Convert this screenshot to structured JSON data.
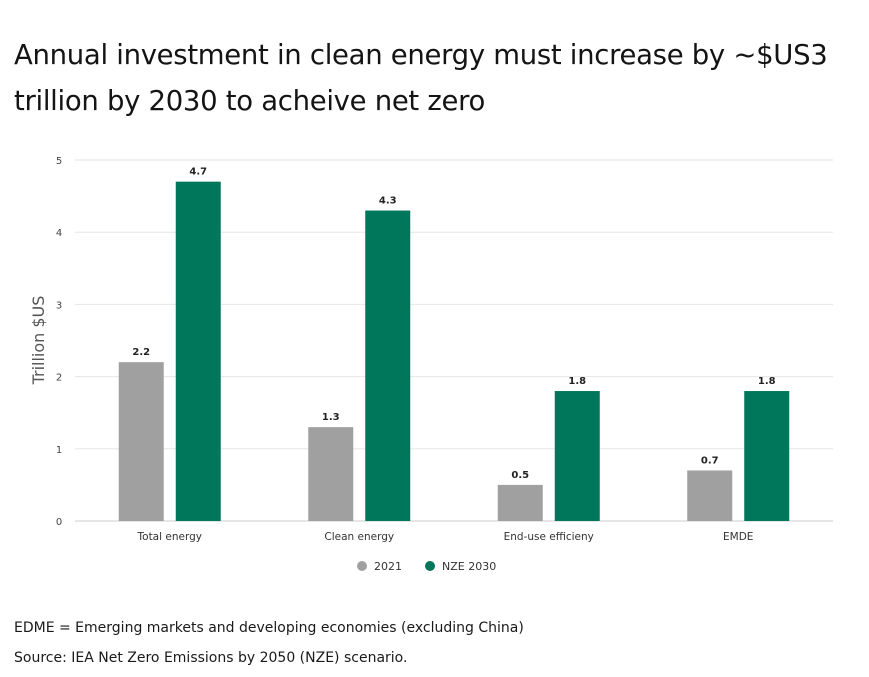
{
  "title": "Annual investment in clean energy must increase by ~$US3 trillion by 2030 to acheive net zero",
  "notes": {
    "definition": "EDME = Emerging markets and developing economies (excluding China)",
    "source": "Source: IEA Net Zero Emissions by 2050 (NZE) scenario."
  },
  "colors": {
    "series_2021": "#a0a0a0",
    "series_nze2030": "#00775a",
    "grid": "#e6e6e6"
  },
  "chart_data": {
    "type": "bar",
    "categories": [
      "Total energy",
      "Clean energy",
      "End-use efficieny",
      "EMDE"
    ],
    "series": [
      {
        "name": "2021",
        "values": [
          2.2,
          1.3,
          0.5,
          0.7
        ],
        "labels": [
          "2.2",
          "1.3",
          "0.5",
          "0.7"
        ]
      },
      {
        "name": "NZE 2030",
        "values": [
          4.7,
          4.3,
          1.8,
          1.8
        ],
        "labels": [
          "4.7",
          "4.3",
          "1.8",
          "1.8"
        ]
      }
    ],
    "ylabel": "Trillion $US",
    "ylim": [
      0,
      5
    ],
    "yticks": [
      "0",
      "1",
      "2",
      "3",
      "4",
      "5"
    ],
    "grid": true,
    "legend": "bottom-center"
  }
}
